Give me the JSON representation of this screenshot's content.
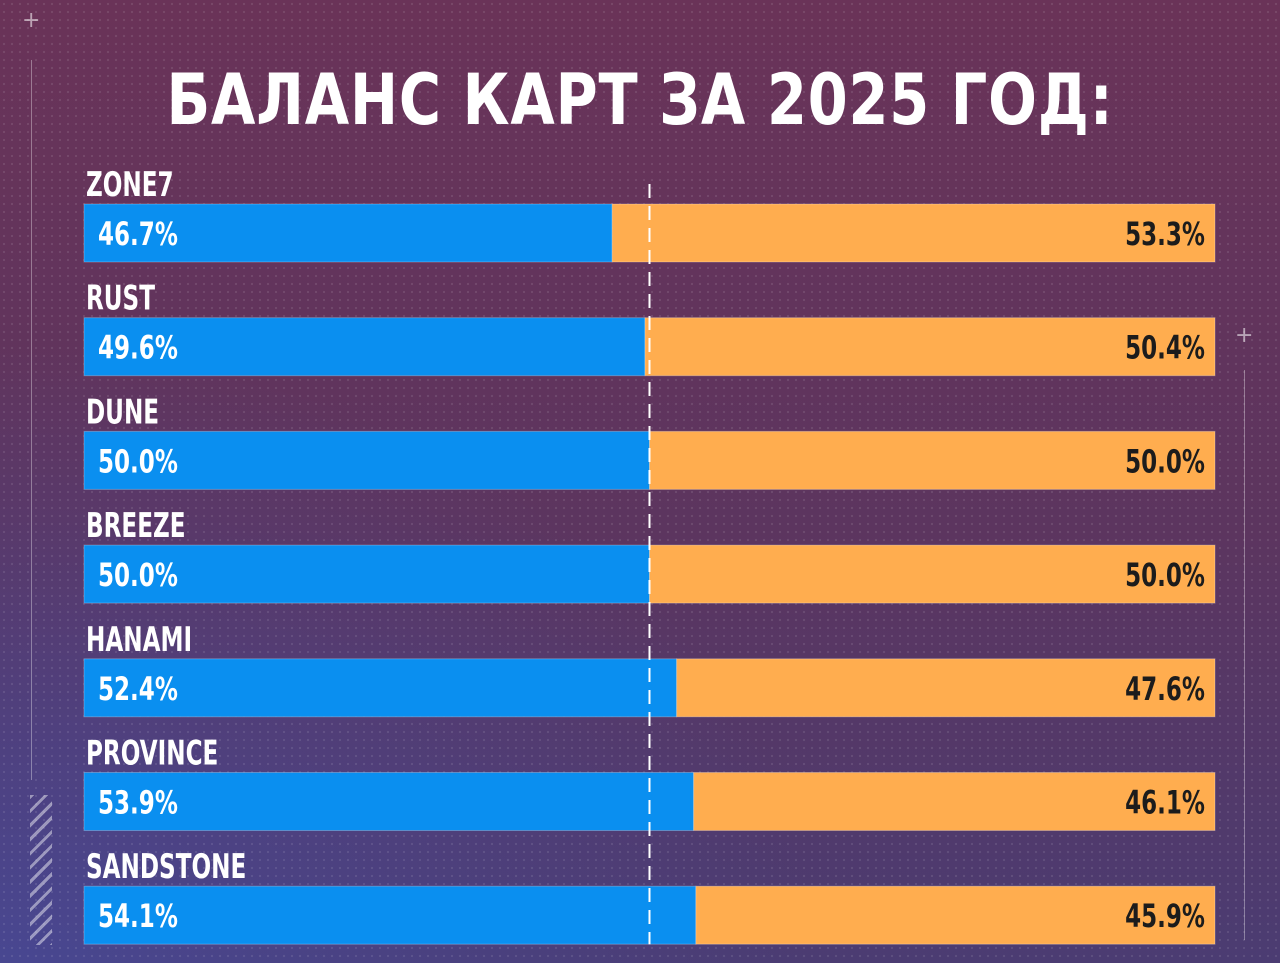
{
  "title": "БАЛАНС КАРТ ЗА 2025 ГОД:",
  "colors": {
    "left": "#0a8ff0",
    "right": "#ffad4f",
    "center_line": "#ffffff"
  },
  "chart_data": {
    "type": "bar",
    "stacked": true,
    "orientation": "horizontal",
    "categories": [
      "ZONE7",
      "RUST",
      "DUNE",
      "BREEZE",
      "HANAMI",
      "PROVINCE",
      "SANDSTONE"
    ],
    "series": [
      {
        "values": [
          46.7,
          49.6,
          50.0,
          50.0,
          52.4,
          53.9,
          54.1
        ]
      },
      {
        "values": [
          53.3,
          50.4,
          50.0,
          50.0,
          47.6,
          46.1,
          45.9
        ]
      }
    ],
    "value_labels_left": [
      "46.7%",
      "49.6%",
      "50.0%",
      "50.0%",
      "52.4%",
      "53.9%",
      "54.1%"
    ],
    "value_labels_right": [
      "53.3%",
      "50.4%",
      "50.0%",
      "50.0%",
      "47.6%",
      "46.1%",
      "45.9%"
    ],
    "xlim": [
      0,
      100
    ],
    "reference_line": 50,
    "grid": false,
    "legend": "none"
  }
}
